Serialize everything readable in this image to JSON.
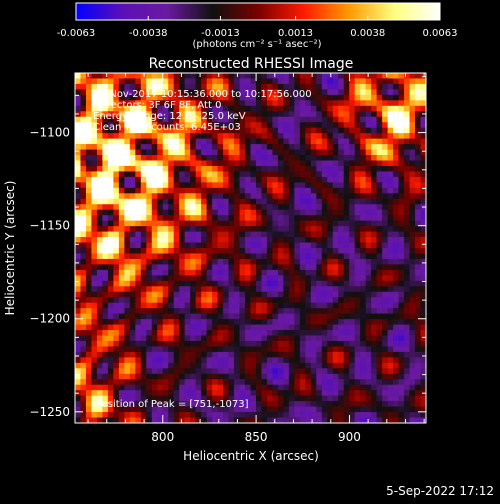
{
  "chart_data": {
    "type": "heatmap",
    "title": "Reconstructed RHESSI Image",
    "xlabel": "Heliocentric X (arcsec)",
    "ylabel": "Heliocentric Y (arcsec)",
    "xlim": [
      753,
      941
    ],
    "ylim": [
      -1256,
      -1068
    ],
    "xticks": [
      800,
      850,
      900
    ],
    "yticks": [
      -1100,
      -1150,
      -1200,
      -1250
    ],
    "colorbar": {
      "min": -0.0063,
      "max": 0.0063,
      "ticks": [
        "-0.0063",
        "-0.0038",
        "-0.0013",
        "0.0013",
        "0.0038",
        "0.0063"
      ],
      "label": "(photons cm⁻² s⁻¹ asec⁻²)",
      "colormap": [
        "#0000ff",
        "#5a10b8",
        "#6a1aa0",
        "#101010",
        "#7a0000",
        "#ff1a00",
        "#ff9a00",
        "#ffff80",
        "#ffffff"
      ]
    },
    "annotations": [
      "14-Nov-2017 10:15:36.000 to 10:17:56.000",
      "Detectors: 3F 6F 8F, Att 0",
      "Energy Range: 12.0 - 25.0 keV",
      "Clean     Total counts: 6.45E+03"
    ],
    "peak_label": "Position of Peak = [751,-1073]",
    "peak": {
      "x": 751,
      "y": -1073
    }
  },
  "footer": {
    "date": "5-Sep-2022 17:12"
  }
}
